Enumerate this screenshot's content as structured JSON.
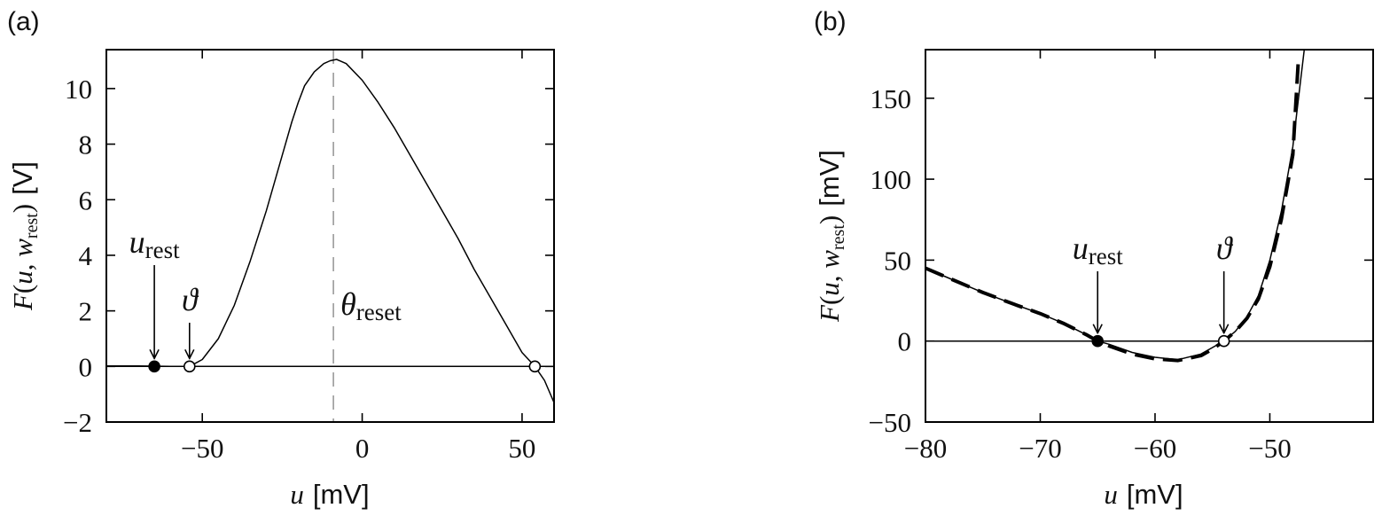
{
  "chart_data": [
    {
      "panel": "(a)",
      "type": "line",
      "xlabel": {
        "var": "u",
        "unit": "[mV]"
      },
      "ylabel": {
        "func": "F",
        "arg1": "u",
        "arg2": "w",
        "sub": "rest",
        "unit": "[V]"
      },
      "xlim": [
        -80,
        60
      ],
      "ylim": [
        -2,
        11.4
      ],
      "xticks": [
        -50,
        0,
        50
      ],
      "yticks": [
        -2,
        0,
        2,
        4,
        6,
        8,
        10
      ],
      "grid": false,
      "series": [
        {
          "style": "solid-thin",
          "x": [
            -80,
            -70,
            -65,
            -60,
            -54,
            -50,
            -45,
            -40,
            -35,
            -30,
            -27,
            -25,
            -22,
            -20,
            -18,
            -15,
            -12,
            -10,
            -8,
            -5,
            0,
            5,
            10,
            15,
            20,
            25,
            30,
            35,
            40,
            45,
            50,
            54,
            57,
            60
          ],
          "y": [
            0.02,
            0.02,
            0.01,
            0.0,
            0.0,
            0.25,
            1.0,
            2.2,
            3.8,
            5.6,
            6.8,
            7.6,
            8.8,
            9.5,
            10.1,
            10.6,
            10.9,
            11.0,
            11.05,
            10.9,
            10.3,
            9.5,
            8.6,
            7.6,
            6.6,
            5.6,
            4.6,
            3.5,
            2.5,
            1.5,
            0.5,
            0.0,
            -0.5,
            -1.3
          ]
        },
        {
          "style": "zero-line",
          "x": [
            -80,
            60
          ],
          "y": [
            0,
            0
          ]
        }
      ],
      "vline": {
        "x": -9,
        "style": "dashed-gray"
      },
      "points": [
        {
          "x": -65,
          "y": 0,
          "fill": "filled"
        },
        {
          "x": -54,
          "y": 0,
          "fill": "open"
        },
        {
          "x": 54,
          "y": 0,
          "fill": "open"
        }
      ],
      "annotations": [
        {
          "text": "u",
          "sub": "rest",
          "x": -65,
          "arrow": true
        },
        {
          "text": "ϑ",
          "sub": "",
          "x": -54,
          "arrow": true
        },
        {
          "text": "θ",
          "sub": "reset",
          "x": -9,
          "arrow": false
        }
      ]
    },
    {
      "panel": "(b)",
      "type": "line",
      "xlabel": {
        "var": "u",
        "unit": "[mV]"
      },
      "ylabel": {
        "func": "F",
        "arg1": "u",
        "arg2": "w",
        "sub": "rest",
        "unit": "[mV]"
      },
      "xlim": [
        -80,
        -41
      ],
      "ylim": [
        -50,
        180
      ],
      "xticks": [
        -80,
        -70,
        -60,
        -50
      ],
      "yticks": [
        -50,
        0,
        50,
        100,
        150
      ],
      "grid": false,
      "series": [
        {
          "style": "solid-thin",
          "x": [
            -80,
            -78,
            -75,
            -72,
            -70,
            -68,
            -66,
            -65,
            -64,
            -62,
            -60,
            -58,
            -56,
            -55,
            -54,
            -53,
            -52,
            -51,
            -50,
            -49,
            -48,
            -47.5,
            -47
          ],
          "y": [
            45,
            39,
            30,
            22,
            17,
            11,
            4,
            0,
            -2,
            -7,
            -10,
            -11.5,
            -8,
            -4,
            0,
            6,
            15,
            28,
            50,
            80,
            120,
            150,
            180
          ]
        },
        {
          "style": "dashed-thick",
          "x": [
            -80,
            -78,
            -75,
            -72,
            -70,
            -68,
            -66,
            -65,
            -64,
            -62,
            -60,
            -58,
            -56,
            -55,
            -54,
            -53,
            -52,
            -51,
            -50,
            -49,
            -48,
            -47.5
          ],
          "y": [
            45,
            39,
            30,
            22,
            17,
            11,
            4,
            0,
            -3,
            -8,
            -11,
            -12,
            -9,
            -5,
            0,
            6,
            14,
            26,
            46,
            75,
            115,
            175
          ]
        },
        {
          "style": "zero-line",
          "x": [
            -80,
            -41
          ],
          "y": [
            0,
            0
          ]
        }
      ],
      "points": [
        {
          "x": -65,
          "y": 0,
          "fill": "filled"
        },
        {
          "x": -54,
          "y": 0,
          "fill": "open"
        }
      ],
      "annotations": [
        {
          "text": "u",
          "sub": "rest",
          "x": -65,
          "arrow": true
        },
        {
          "text": "ϑ",
          "sub": "",
          "x": -54,
          "arrow": true
        }
      ]
    }
  ]
}
